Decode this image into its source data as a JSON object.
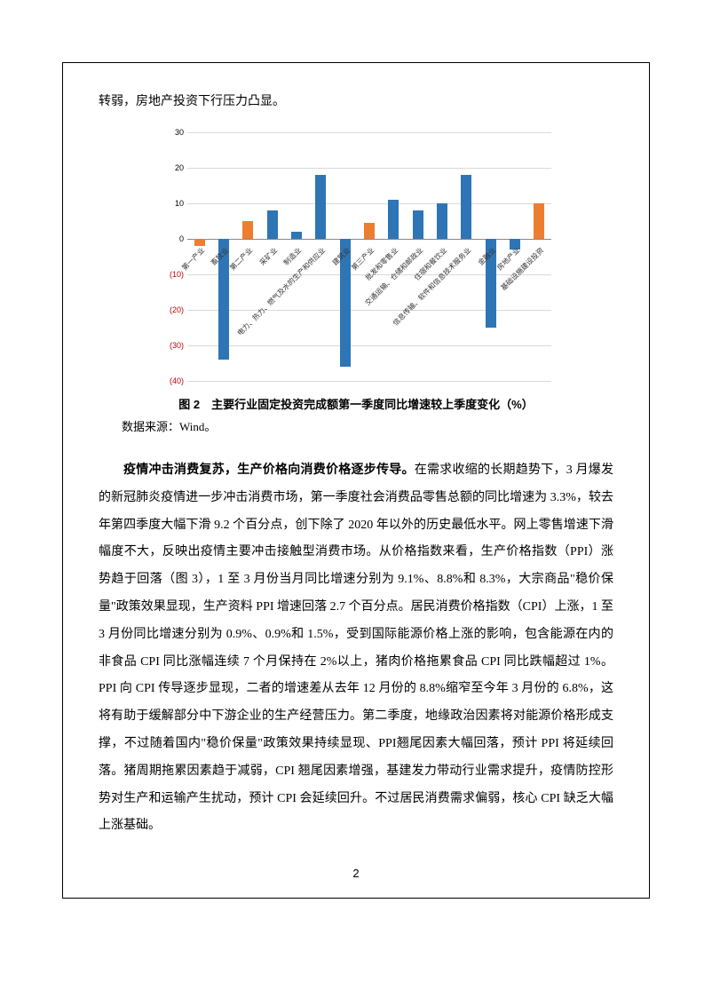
{
  "top_paragraph": "转弱，房地产投资下行压力凸显。",
  "chart": {
    "type": "bar",
    "ylim": [
      -40,
      30
    ],
    "ytick_step": 10,
    "grid_color": "#d9d9d9",
    "axis_color": "#888888",
    "background_color": "#ffffff",
    "blue": "#2e75b6",
    "orange": "#ed7d31",
    "negative_tick_color": "#c00000",
    "y_label_fontsize": 9,
    "x_label_fontsize": 8,
    "categories": [
      {
        "label": "第一产业",
        "value": -2,
        "color": "orange"
      },
      {
        "label": "畜牧业",
        "value": -34,
        "color": "blue"
      },
      {
        "label": "第二产业",
        "value": 5,
        "color": "orange"
      },
      {
        "label": "采矿业",
        "value": 8,
        "color": "blue"
      },
      {
        "label": "制造业",
        "value": 2,
        "color": "blue"
      },
      {
        "label": "电力、热力、燃气及水的生产和供应业",
        "value": 18,
        "color": "blue"
      },
      {
        "label": "建筑业",
        "value": -36,
        "color": "blue"
      },
      {
        "label": "第三产业",
        "value": 4.5,
        "color": "orange"
      },
      {
        "label": "批发和零售业",
        "value": 11,
        "color": "blue"
      },
      {
        "label": "交通运输、仓储和邮政业",
        "value": 8,
        "color": "blue"
      },
      {
        "label": "住宿和餐饮业",
        "value": 10,
        "color": "blue"
      },
      {
        "label": "信息传输、软件和信息技术服务业",
        "value": 18,
        "color": "blue"
      },
      {
        "label": "金融业",
        "value": -25,
        "color": "blue"
      },
      {
        "label": "房地产业",
        "value": -3,
        "color": "blue"
      },
      {
        "label": "基础设施建设投资",
        "value": 10,
        "color": "orange"
      }
    ],
    "caption": "图 2　主要行业固定投资完成额第一季度同比增速较上季度变化（%）"
  },
  "source_label": "数据来源：Wind。",
  "paragraph": {
    "lead": "疫情冲击消费复苏，生产价格向消费价格逐步传导。",
    "rest": "在需求收缩的长期趋势下，3 月爆发的新冠肺炎疫情进一步冲击消费市场，第一季度社会消费品零售总额的同比增速为 3.3%，较去年第四季度大幅下滑 9.2 个百分点，创下除了 2020 年以外的历史最低水平。网上零售增速下滑幅度不大，反映出疫情主要冲击接触型消费市场。从价格指数来看，生产价格指数（PPI）涨势趋于回落（图 3），1 至 3 月份当月同比增速分别为 9.1%、8.8%和 8.3%，大宗商品\"稳价保量\"政策效果显现，生产资料 PPI 增速回落 2.7 个百分点。居民消费价格指数（CPI）上涨，1 至 3 月份同比增速分别为 0.9%、0.9%和 1.5%，受到国际能源价格上涨的影响，包含能源在内的非食品 CPI 同比涨幅连续 7 个月保持在 2%以上，猪肉价格拖累食品 CPI 同比跌幅超过 1%。PPI 向 CPI 传导逐步显现，二者的增速差从去年 12 月份的 8.8%缩窄至今年 3 月份的 6.8%，这将有助于缓解部分中下游企业的生产经营压力。第二季度，地缘政治因素将对能源价格形成支撑，不过随着国内\"稳价保量\"政策效果持续显现、PPI翘尾因素大幅回落，预计 PPI 将延续回落。猪周期拖累因素趋于减弱，CPI 翘尾因素增强，基建发力带动行业需求提升，疫情防控形势对生产和运输产生扰动，预计 CPI 会延续回升。不过居民消费需求偏弱，核心 CPI 缺乏大幅上涨基础。"
  },
  "page_number": "2"
}
